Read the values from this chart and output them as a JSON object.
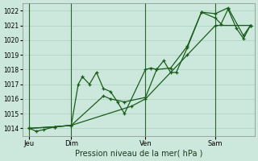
{
  "title": "",
  "xlabel": "Pression niveau de la mer( hPa )",
  "ylabel": "",
  "background_color": "#cce8dc",
  "plot_bg_color": "#cce8dc",
  "grid_color": "#b0d4c4",
  "ylim": [
    1013.5,
    1022.5
  ],
  "yticks": [
    1014,
    1015,
    1016,
    1017,
    1018,
    1019,
    1020,
    1021,
    1022
  ],
  "line_color": "#1a5c1a",
  "vline_color": "#1a5c1a",
  "xlim": [
    -0.3,
    16.3
  ],
  "day_labels": [
    "Jeu",
    "Dim",
    "Ven",
    "Sam"
  ],
  "day_positions": [
    0.2,
    3.2,
    8.5,
    13.5
  ],
  "vline_positions": [
    0.2,
    3.2,
    8.5,
    13.5
  ],
  "series1_x": [
    0.2,
    0.7,
    1.2,
    2.0,
    3.2,
    3.7,
    4.0,
    4.5,
    5.0,
    5.5,
    6.0,
    6.5,
    7.0,
    8.5,
    8.9,
    9.3,
    9.8,
    10.3,
    10.7,
    11.5,
    12.5,
    13.5,
    13.9,
    14.4,
    15.0,
    15.5,
    16.0
  ],
  "series1_y": [
    1014.0,
    1013.8,
    1013.9,
    1014.1,
    1014.2,
    1017.0,
    1017.5,
    1017.0,
    1017.8,
    1016.7,
    1016.5,
    1015.8,
    1015.0,
    1018.0,
    1018.1,
    1018.0,
    1018.6,
    1017.8,
    1017.8,
    1019.5,
    1021.9,
    1021.5,
    1021.1,
    1022.1,
    1020.8,
    1020.1,
    1021.0
  ],
  "series2_x": [
    0.2,
    2.0,
    3.2,
    5.5,
    6.0,
    7.0,
    8.5,
    9.3,
    10.3,
    11.5,
    12.5,
    13.5,
    14.4,
    15.5,
    16.0
  ],
  "series2_y": [
    1014.0,
    1014.1,
    1014.2,
    1016.2,
    1016.0,
    1015.8,
    1016.1,
    1018.0,
    1018.1,
    1019.6,
    1021.9,
    1021.8,
    1022.2,
    1020.3,
    1021.0
  ],
  "series3_x": [
    0.2,
    2.0,
    3.2,
    7.5,
    8.5,
    11.5,
    13.5,
    16.0
  ],
  "series3_y": [
    1014.0,
    1014.1,
    1014.2,
    1015.5,
    1016.0,
    1019.0,
    1021.0,
    1021.0
  ]
}
